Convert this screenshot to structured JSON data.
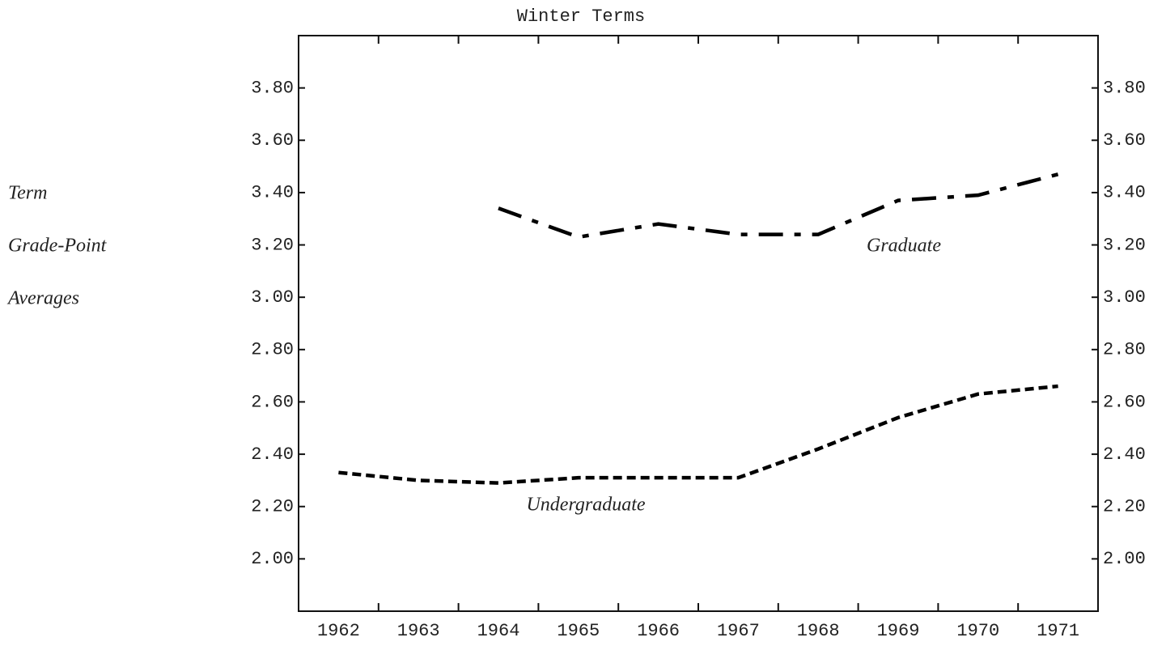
{
  "chart_data": {
    "type": "line",
    "title": "Winter Terms",
    "ylabel": [
      "Term",
      "Grade-Point",
      "Averages"
    ],
    "categories": [
      "1962",
      "1963",
      "1964",
      "1965",
      "1966",
      "1967",
      "1968",
      "1969",
      "1970",
      "1971"
    ],
    "series": [
      {
        "name": "Graduate",
        "color": "#000000",
        "line_style": "dashdot",
        "values": [
          null,
          null,
          3.34,
          3.23,
          3.28,
          3.24,
          3.24,
          3.37,
          3.39,
          3.47
        ]
      },
      {
        "name": "Undergraduate",
        "color": "#000000",
        "line_style": "dashed",
        "values": [
          2.33,
          2.3,
          2.29,
          2.31,
          2.31,
          2.31,
          2.42,
          2.54,
          2.63,
          2.66
        ]
      }
    ],
    "ylim": [
      1.8,
      4.0
    ],
    "yticks": [
      {
        "value": 2.0,
        "label": "2.00"
      },
      {
        "value": 2.2,
        "label": "2.20"
      },
      {
        "value": 2.4,
        "label": "2.40"
      },
      {
        "value": 2.6,
        "label": "2.60"
      },
      {
        "value": 2.8,
        "label": "2.80"
      },
      {
        "value": 3.0,
        "label": "3.00"
      },
      {
        "value": 3.2,
        "label": "3.20"
      },
      {
        "value": 3.4,
        "label": "3.40"
      },
      {
        "value": 3.6,
        "label": "3.60"
      },
      {
        "value": 3.8,
        "label": "3.80"
      }
    ],
    "y2lim": [
      1.8,
      4.0
    ],
    "y2ticks": [
      {
        "value": 2.0,
        "label": "2.00"
      },
      {
        "value": 2.2,
        "label": "2.20"
      },
      {
        "value": 2.4,
        "label": "2.40"
      },
      {
        "value": 2.6,
        "label": "2.60"
      },
      {
        "value": 2.8,
        "label": "2.80"
      },
      {
        "value": 3.0,
        "label": "3.00"
      },
      {
        "value": 3.2,
        "label": "3.20"
      },
      {
        "value": 3.4,
        "label": "3.40"
      },
      {
        "value": 3.6,
        "label": "3.60"
      },
      {
        "value": 3.8,
        "label": "3.80"
      }
    ],
    "grid": false
  }
}
